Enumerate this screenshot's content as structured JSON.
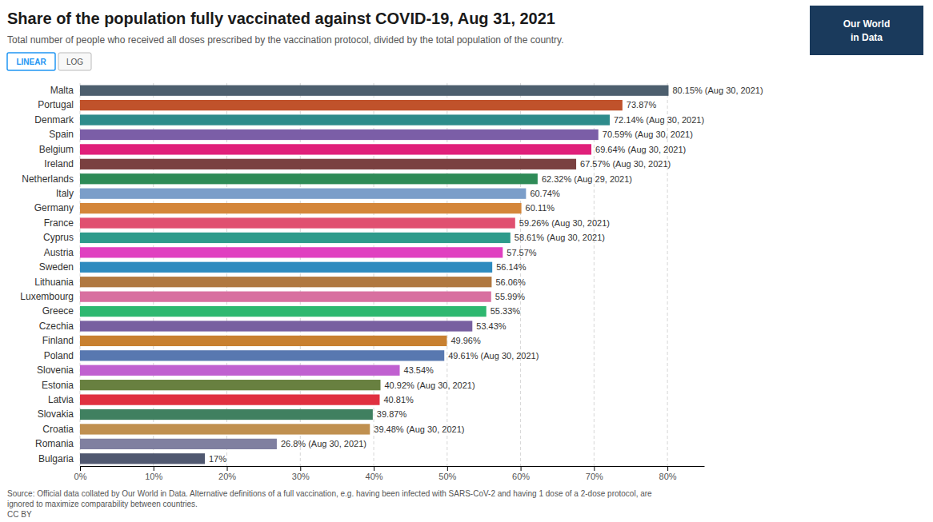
{
  "chart_data": {
    "type": "bar",
    "orientation": "horizontal",
    "title": "Share of the population fully vaccinated against COVID-19, Aug 31, 2021",
    "subtitle": "Total number of people who received all doses prescribed by the vaccination protocol, divided by the total population of the country.",
    "annotations": [
      "LINEAR",
      "LOG",
      "Our World\nin Data",
      "Source: Official data collated by Our World in Data. Alternative definitions of a full vaccination, e.g. having been infected with SARS-CoV-2 and having 1 dose of a 2-dose protocol, are\nignored to maximize comparability between countries.\nCC BY"
    ],
    "categories": [
      "Malta",
      "Portugal",
      "Denmark",
      "Spain",
      "Belgium",
      "Ireland",
      "Netherlands",
      "Italy",
      "Germany",
      "France",
      "Cyprus",
      "Austria",
      "Sweden",
      "Lithuania",
      "Luxembourg",
      "Greece",
      "Czechia",
      "Finland",
      "Poland",
      "Slovenia",
      "Estonia",
      "Latvia",
      "Slovakia",
      "Croatia",
      "Romania",
      "Bulgaria"
    ],
    "values": [
      80.15,
      73.87,
      72.14,
      70.59,
      69.64,
      67.57,
      62.32,
      60.74,
      60.11,
      59.26,
      58.61,
      57.57,
      56.14,
      56.06,
      55.99,
      55.33,
      53.43,
      49.96,
      49.61,
      43.54,
      40.92,
      40.81,
      39.87,
      39.48,
      26.8,
      17.0
    ],
    "value_labels": [
      "80.15% (Aug 30, 2021)",
      "73.87%",
      "72.14% (Aug 30, 2021)",
      "70.59% (Aug 30, 2021)",
      "69.64% (Aug 30, 2021)",
      "67.57% (Aug 30, 2021)",
      "62.32% (Aug 29, 2021)",
      "60.74%",
      "60.11%",
      "59.26% (Aug 30, 2021)",
      "58.61% (Aug 30, 2021)",
      "57.57%",
      "56.14%",
      "56.06%",
      "55.99%",
      "55.33%",
      "53.43%",
      "49.96%",
      "49.61% (Aug 30, 2021)",
      "43.54%",
      "40.92% (Aug 30, 2021)",
      "40.81%",
      "39.87%",
      "39.48% (Aug 30, 2021)",
      "26.8% (Aug 30, 2021)",
      "17%"
    ],
    "data_labels": true,
    "colors": [
      "#4d5f6e",
      "#c0522b",
      "#2e8b8b",
      "#7b5ea7",
      "#e0207a",
      "#7a4040",
      "#2e8b57",
      "#7b9ec9",
      "#d4863a",
      "#e05070",
      "#2e9b8b",
      "#e040c0",
      "#2e8bbf",
      "#b07840",
      "#d870a0",
      "#2eb870",
      "#7860a0",
      "#c88030",
      "#5878b0",
      "#c060d0",
      "#688040",
      "#e03040",
      "#408060",
      "#c09050",
      "#8080a0",
      "#505870"
    ],
    "xlim": [
      0,
      85
    ],
    "xticks": [
      {
        "value": 0,
        "label": "0%"
      },
      {
        "value": 10,
        "label": "10%"
      },
      {
        "value": 20,
        "label": "20%"
      },
      {
        "value": 30,
        "label": "30%"
      },
      {
        "value": 40,
        "label": "40%"
      },
      {
        "value": 50,
        "label": "50%"
      },
      {
        "value": 60,
        "label": "60%"
      },
      {
        "value": 70,
        "label": "70%"
      },
      {
        "value": 80,
        "label": "80%"
      }
    ],
    "grid": true
  }
}
